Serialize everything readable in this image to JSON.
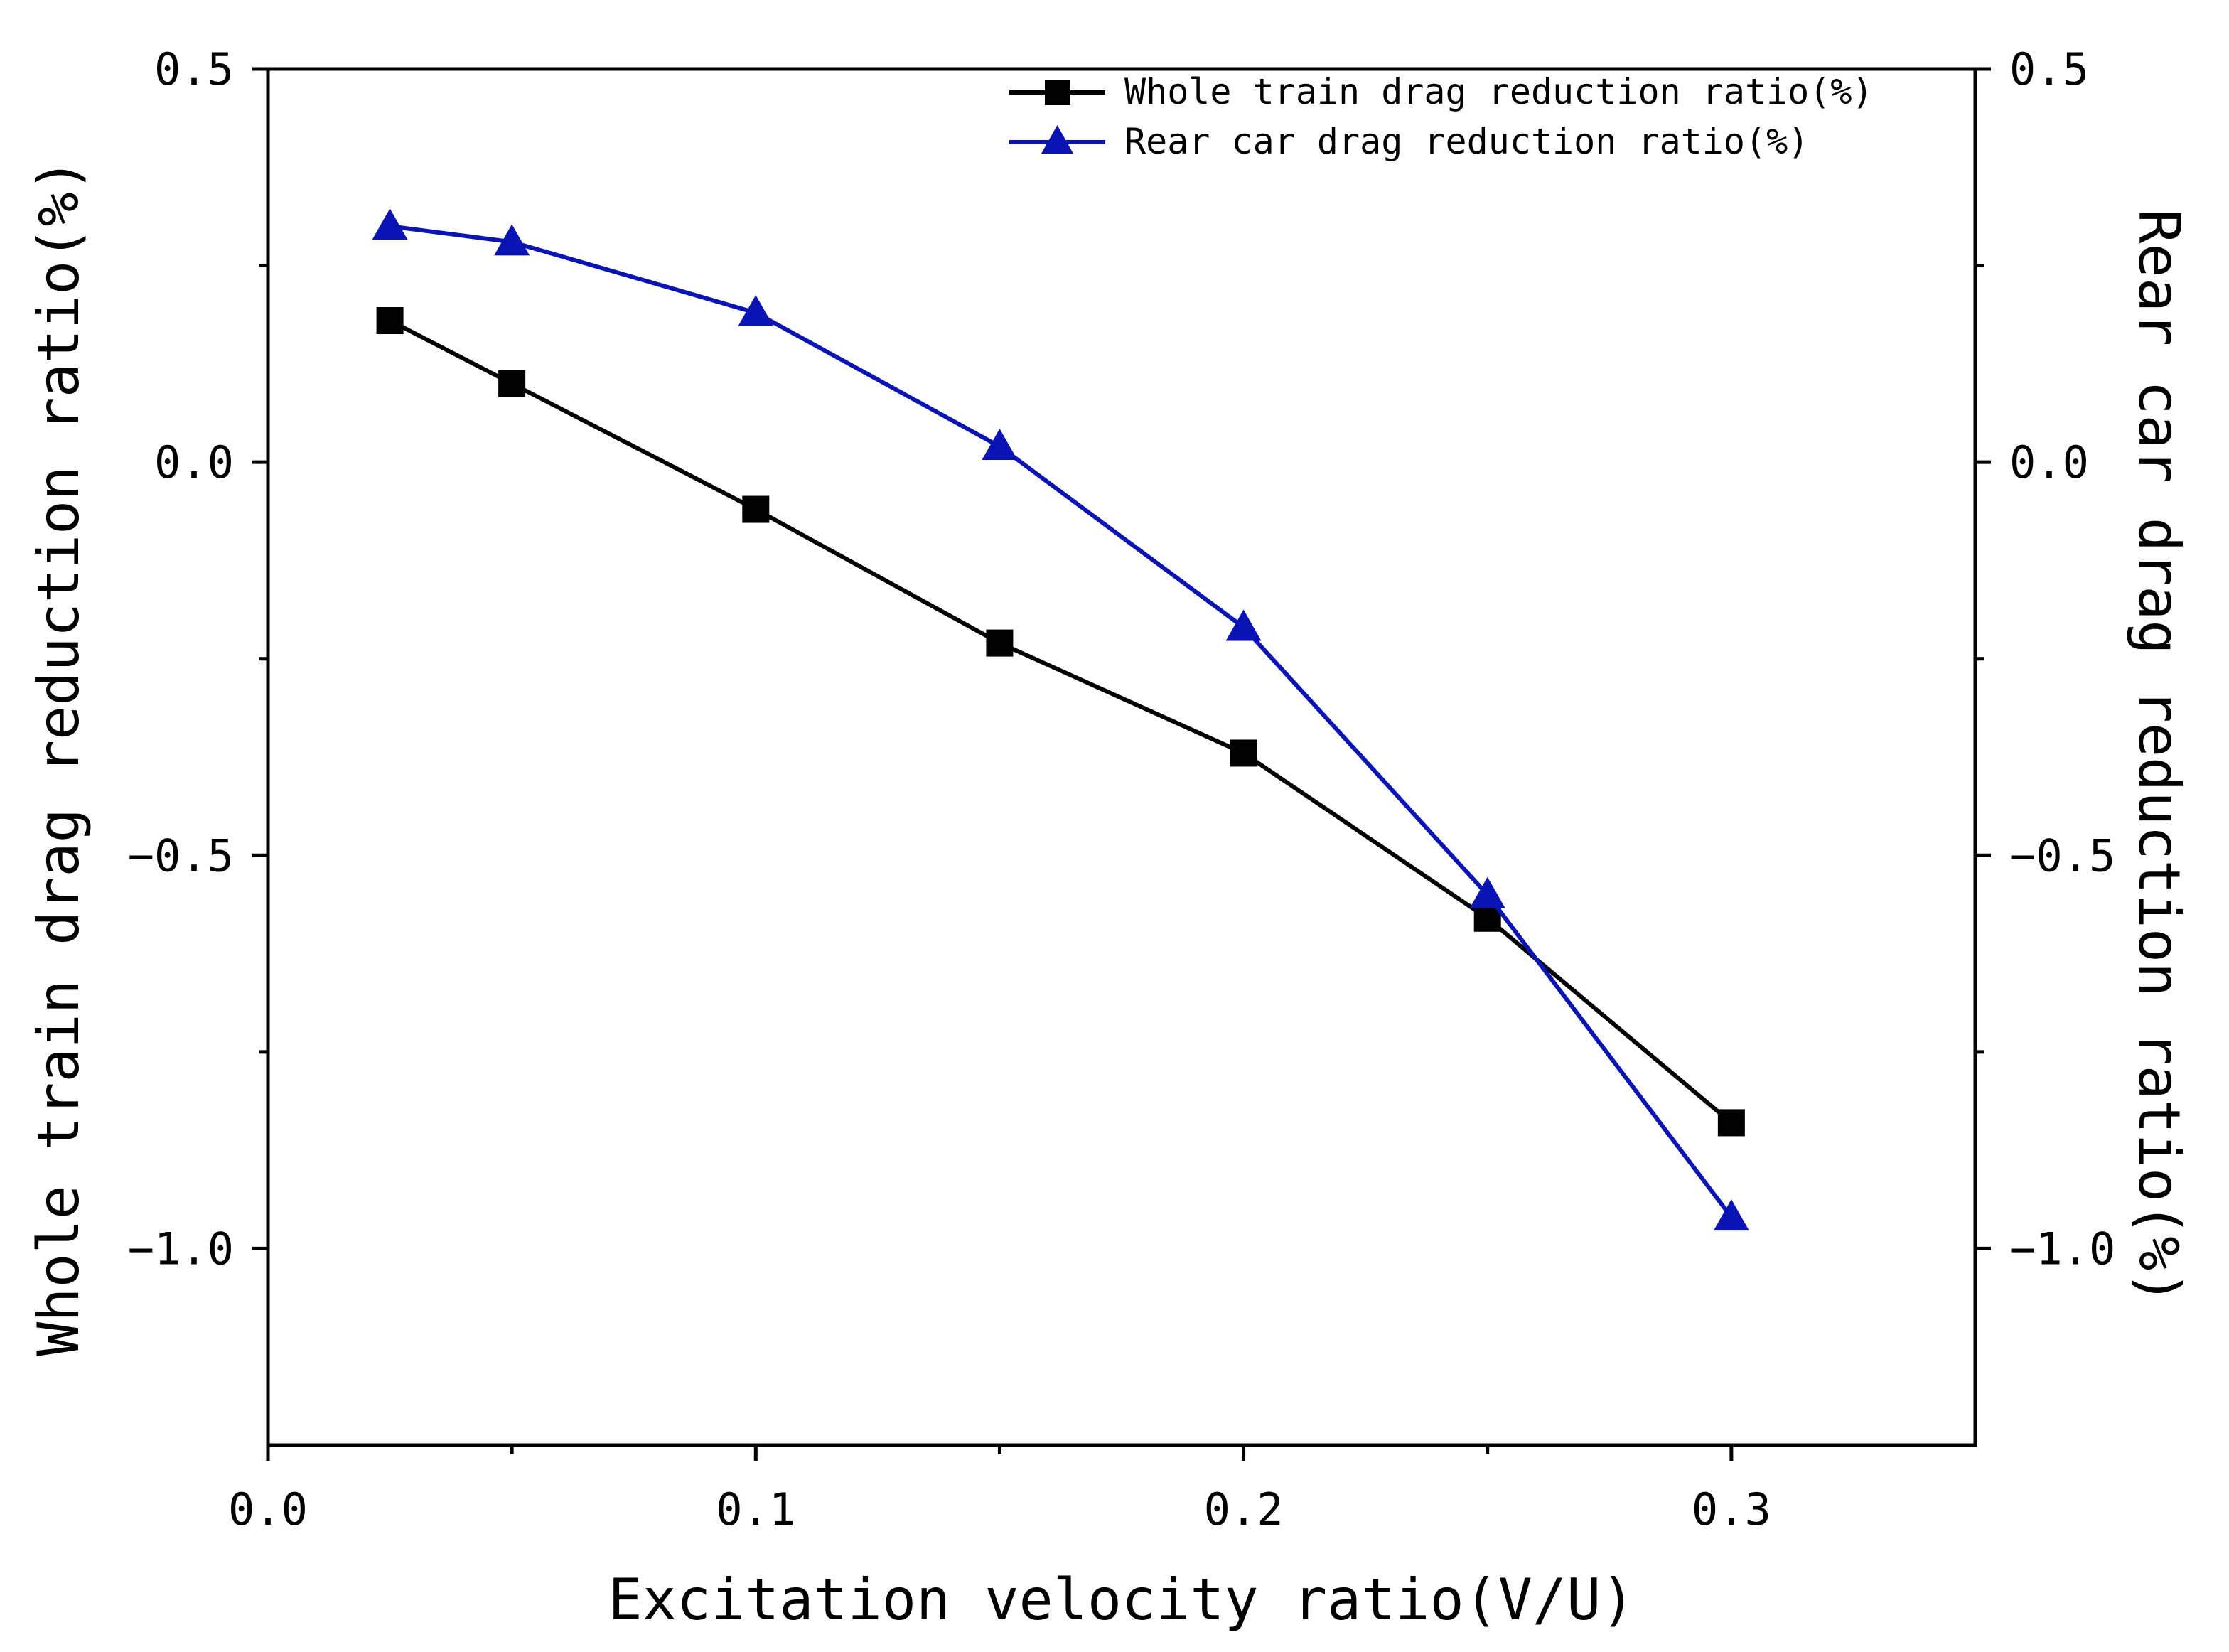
{
  "chart_data": {
    "type": "line",
    "xlabel": "Excitation velocity ratio(V/U)",
    "ylabel_left": "Whole train drag reduction ratio(%)",
    "ylabel_right": "Rear car drag reduction ratio(%)",
    "xlim": [
      0.0,
      0.35
    ],
    "ylim": [
      -1.25,
      0.5
    ],
    "x_ticks": [
      0.0,
      0.1,
      0.2,
      0.3
    ],
    "x_tick_labels": [
      "0.0",
      "0.1",
      "0.2",
      "0.3"
    ],
    "y_ticks": [
      0.5,
      0.0,
      -0.5,
      -1.0
    ],
    "y_tick_labels_left": [
      "0.5",
      "0.0",
      "−0.5",
      "−1.0"
    ],
    "y_tick_labels_right": [
      "0.5",
      "0.0",
      "−0.5",
      "−1.0"
    ],
    "legend_position": "top-right",
    "series": [
      {
        "name": "Whole train drag reduction ratio(%)",
        "color": "#000000",
        "marker": "square",
        "x": [
          0.025,
          0.05,
          0.1,
          0.15,
          0.2,
          0.25,
          0.3
        ],
        "values": [
          0.18,
          0.1,
          -0.06,
          -0.23,
          -0.37,
          -0.58,
          -0.84
        ]
      },
      {
        "name": "Rear car drag reduction ratio(%)",
        "color": "#0a14b4",
        "marker": "triangle",
        "x": [
          0.025,
          0.05,
          0.1,
          0.15,
          0.2,
          0.25,
          0.3
        ],
        "values": [
          0.3,
          0.28,
          0.19,
          0.02,
          -0.21,
          -0.55,
          -0.96
        ]
      }
    ]
  }
}
